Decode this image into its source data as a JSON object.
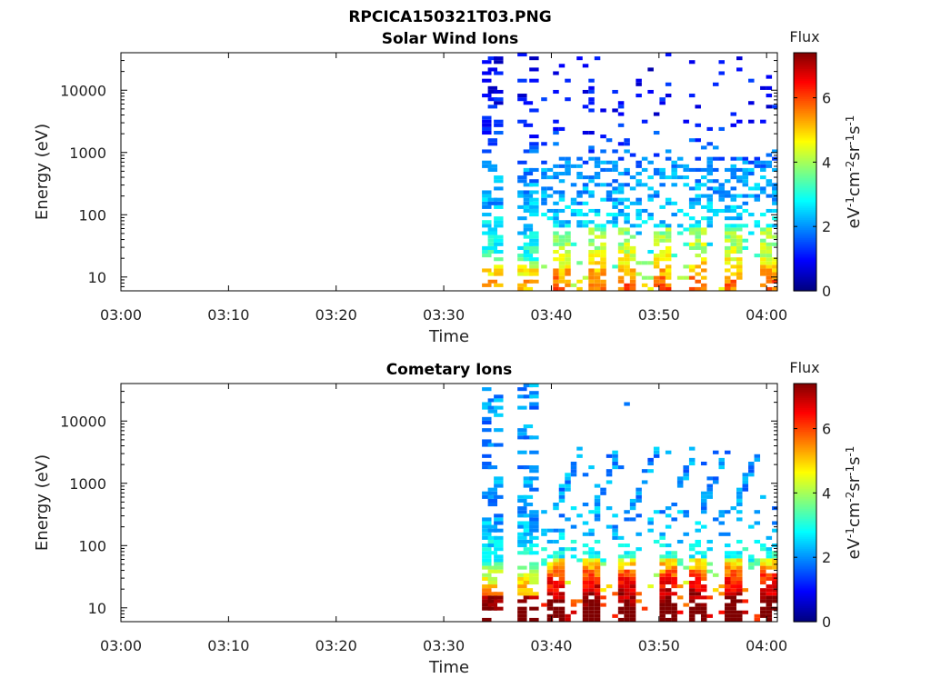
{
  "figure_title": "RPCICA150321T03.PNG",
  "colormap": [
    "#00007f",
    "#0000ff",
    "#007fff",
    "#00ffff",
    "#7fff7f",
    "#ffff00",
    "#ff7f00",
    "#ff0000",
    "#7f0000"
  ],
  "chart_data": [
    {
      "type": "heatmap",
      "title": "Solar Wind Ions",
      "xlabel": "Time",
      "ylabel": "Energy (eV)",
      "yscale": "log",
      "xlim": [
        "03:00",
        "04:01"
      ],
      "ylim": [
        6,
        40000
      ],
      "x_ticks": [
        "03:00",
        "03:10",
        "03:20",
        "03:30",
        "03:40",
        "03:50",
        "04:00"
      ],
      "y_ticks": [
        "10",
        "100",
        "1000",
        "10000"
      ],
      "colorbar": {
        "label": "Flux",
        "units": "eV-1cm-2sr-1s-1",
        "range": [
          0,
          7.4
        ],
        "ticks": [
          "0",
          "2",
          "4",
          "6"
        ]
      },
      "data_start": "03:33",
      "bursts": [
        "03:34",
        "03:37.5"
      ],
      "periodic_bands": [
        "03:40.5",
        "03:44",
        "03:47",
        "03:50",
        "03:53.5",
        "03:56.5",
        "03:60"
      ],
      "flux_profile": [
        {
          "energy": 8,
          "flux": 4.5
        },
        {
          "energy": 25,
          "flux": 3.0
        },
        {
          "energy": 150,
          "flux": 2.2
        },
        {
          "energy": 500,
          "flux": 2.0
        },
        {
          "energy": 3000,
          "flux": 1.0
        },
        {
          "energy": 30000,
          "flux": 0.8
        }
      ]
    },
    {
      "type": "heatmap",
      "title": "Cometary Ions",
      "xlabel": "Time",
      "ylabel": "Energy (eV)",
      "yscale": "log",
      "xlim": [
        "03:00",
        "04:01"
      ],
      "ylim": [
        6,
        40000
      ],
      "x_ticks": [
        "03:00",
        "03:10",
        "03:20",
        "03:30",
        "03:40",
        "03:50",
        "04:00"
      ],
      "y_ticks": [
        "10",
        "100",
        "1000",
        "10000"
      ],
      "colorbar": {
        "label": "Flux",
        "units": "eV-1cm-2sr-1s-1",
        "range": [
          0,
          7.4
        ],
        "ticks": [
          "0",
          "2",
          "4",
          "6"
        ]
      },
      "data_start": "03:33",
      "bursts": [
        "03:34",
        "03:37.5"
      ],
      "periodic_bands": [
        "03:40",
        "03:43.5",
        "03:47",
        "03:50.5",
        "03:53.5",
        "03:56.5",
        "03:60"
      ],
      "flux_profile": [
        {
          "energy": 8,
          "flux": 6.5
        },
        {
          "energy": 30,
          "flux": 4.5
        },
        {
          "energy": 60,
          "flux": 3.0
        },
        {
          "energy": 200,
          "flux": 2.2
        },
        {
          "energy": 1000,
          "flux": 2.0
        },
        {
          "energy": 3000,
          "flux": 2.0
        }
      ]
    }
  ]
}
